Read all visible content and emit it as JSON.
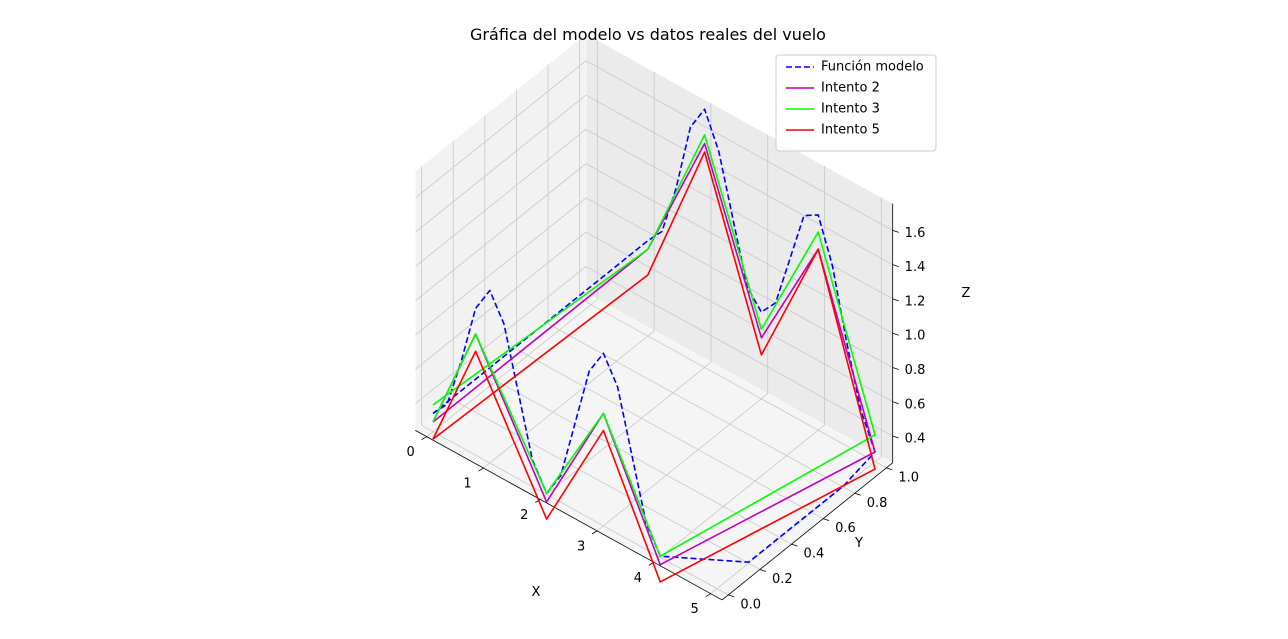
{
  "chart_data": {
    "type": "line",
    "projection": "3d",
    "title": "Gráfica del modelo vs datos reales del vuelo",
    "xlabel": "X",
    "ylabel": "Y",
    "zlabel": "Z",
    "xlim": [
      0,
      5
    ],
    "ylim": [
      0,
      1
    ],
    "zlim": [
      0.3,
      1.7
    ],
    "x_ticks": [
      "0",
      "1",
      "2",
      "3",
      "4",
      "5"
    ],
    "y_ticks": [
      "0.0",
      "0.2",
      "0.4",
      "0.6",
      "0.8",
      "1.0"
    ],
    "z_ticks": [
      "0.4",
      "0.6",
      "0.8",
      "1.0",
      "1.2",
      "1.4",
      "1.6"
    ],
    "grid": true,
    "legend_position": "top-right",
    "series": [
      {
        "name": "Función modelo",
        "color": "#0000ff",
        "linestyle": "dashed",
        "points": [
          [
            0.0,
            0.0,
            0.35
          ],
          [
            0.25,
            0.0,
            0.45
          ],
          [
            0.5,
            0.0,
            0.75
          ],
          [
            0.75,
            0.0,
            1.1
          ],
          [
            1.0,
            0.0,
            1.25
          ],
          [
            1.25,
            0.0,
            1.1
          ],
          [
            1.5,
            0.0,
            0.75
          ],
          [
            1.75,
            0.0,
            0.4
          ],
          [
            2.0,
            0.0,
            0.25
          ],
          [
            2.25,
            0.0,
            0.4
          ],
          [
            2.5,
            0.0,
            0.75
          ],
          [
            2.75,
            0.0,
            1.1
          ],
          [
            3.0,
            0.0,
            1.25
          ],
          [
            3.25,
            0.0,
            1.1
          ],
          [
            3.5,
            0.0,
            0.75
          ],
          [
            3.75,
            0.0,
            0.4
          ],
          [
            4.0,
            0.0,
            0.25
          ],
          [
            5.0,
            0.2,
            0.25
          ],
          [
            5.0,
            0.4,
            0.25
          ],
          [
            5.0,
            0.6,
            0.25
          ],
          [
            5.0,
            0.8,
            0.25
          ],
          [
            5.0,
            1.0,
            0.3
          ],
          [
            4.75,
            1.0,
            0.5
          ],
          [
            4.5,
            1.0,
            0.85
          ],
          [
            4.25,
            1.0,
            1.25
          ],
          [
            4.0,
            1.0,
            1.5
          ],
          [
            3.75,
            1.0,
            1.45
          ],
          [
            3.5,
            1.0,
            1.15
          ],
          [
            3.25,
            1.0,
            0.85
          ],
          [
            3.0,
            1.0,
            0.75
          ],
          [
            2.75,
            1.0,
            0.85
          ],
          [
            2.5,
            1.0,
            1.2
          ],
          [
            2.25,
            1.0,
            1.55
          ],
          [
            2.0,
            1.0,
            1.75
          ],
          [
            1.75,
            1.0,
            1.6
          ],
          [
            1.5,
            1.0,
            1.2
          ],
          [
            1.25,
            1.0,
            0.9
          ],
          [
            1.0,
            1.0,
            0.8
          ],
          [
            0.0,
            0.0,
            0.35
          ]
        ]
      },
      {
        "name": "Intento 2",
        "color": "#c000c0",
        "linestyle": "solid",
        "points": [
          [
            0.0,
            0.0,
            0.3
          ],
          [
            0.75,
            0.0,
            0.95
          ],
          [
            2.0,
            0.0,
            0.2
          ],
          [
            3.0,
            0.0,
            0.9
          ],
          [
            4.0,
            0.0,
            0.2
          ],
          [
            5.0,
            1.0,
            0.3
          ],
          [
            4.0,
            1.0,
            1.3
          ],
          [
            3.0,
            1.0,
            0.6
          ],
          [
            2.0,
            1.0,
            1.55
          ],
          [
            1.0,
            1.0,
            0.75
          ],
          [
            0.0,
            0.0,
            0.3
          ]
        ]
      },
      {
        "name": "Intento 3",
        "color": "#00ff00",
        "linestyle": "solid",
        "points": [
          [
            0.0,
            0.0,
            0.3
          ],
          [
            0.75,
            0.0,
            0.95
          ],
          [
            2.0,
            0.0,
            0.25
          ],
          [
            3.0,
            0.0,
            0.9
          ],
          [
            4.0,
            0.0,
            0.25
          ],
          [
            5.0,
            1.0,
            0.4
          ],
          [
            4.0,
            1.0,
            1.4
          ],
          [
            3.0,
            1.0,
            0.65
          ],
          [
            2.0,
            1.0,
            1.6
          ],
          [
            1.0,
            1.0,
            0.75
          ],
          [
            0.0,
            0.0,
            0.4
          ]
        ]
      },
      {
        "name": "Intento 5",
        "color": "#ff0000",
        "linestyle": "solid",
        "points": [
          [
            0.0,
            0.0,
            0.2
          ],
          [
            0.75,
            0.0,
            0.85
          ],
          [
            2.0,
            0.0,
            0.1
          ],
          [
            3.0,
            0.0,
            0.8
          ],
          [
            4.0,
            0.0,
            0.1
          ],
          [
            5.0,
            1.0,
            0.2
          ],
          [
            4.0,
            1.0,
            1.3
          ],
          [
            3.0,
            1.0,
            0.5
          ],
          [
            2.0,
            1.0,
            1.5
          ],
          [
            1.0,
            1.0,
            0.6
          ],
          [
            0.0,
            0.0,
            0.2
          ]
        ]
      }
    ]
  }
}
